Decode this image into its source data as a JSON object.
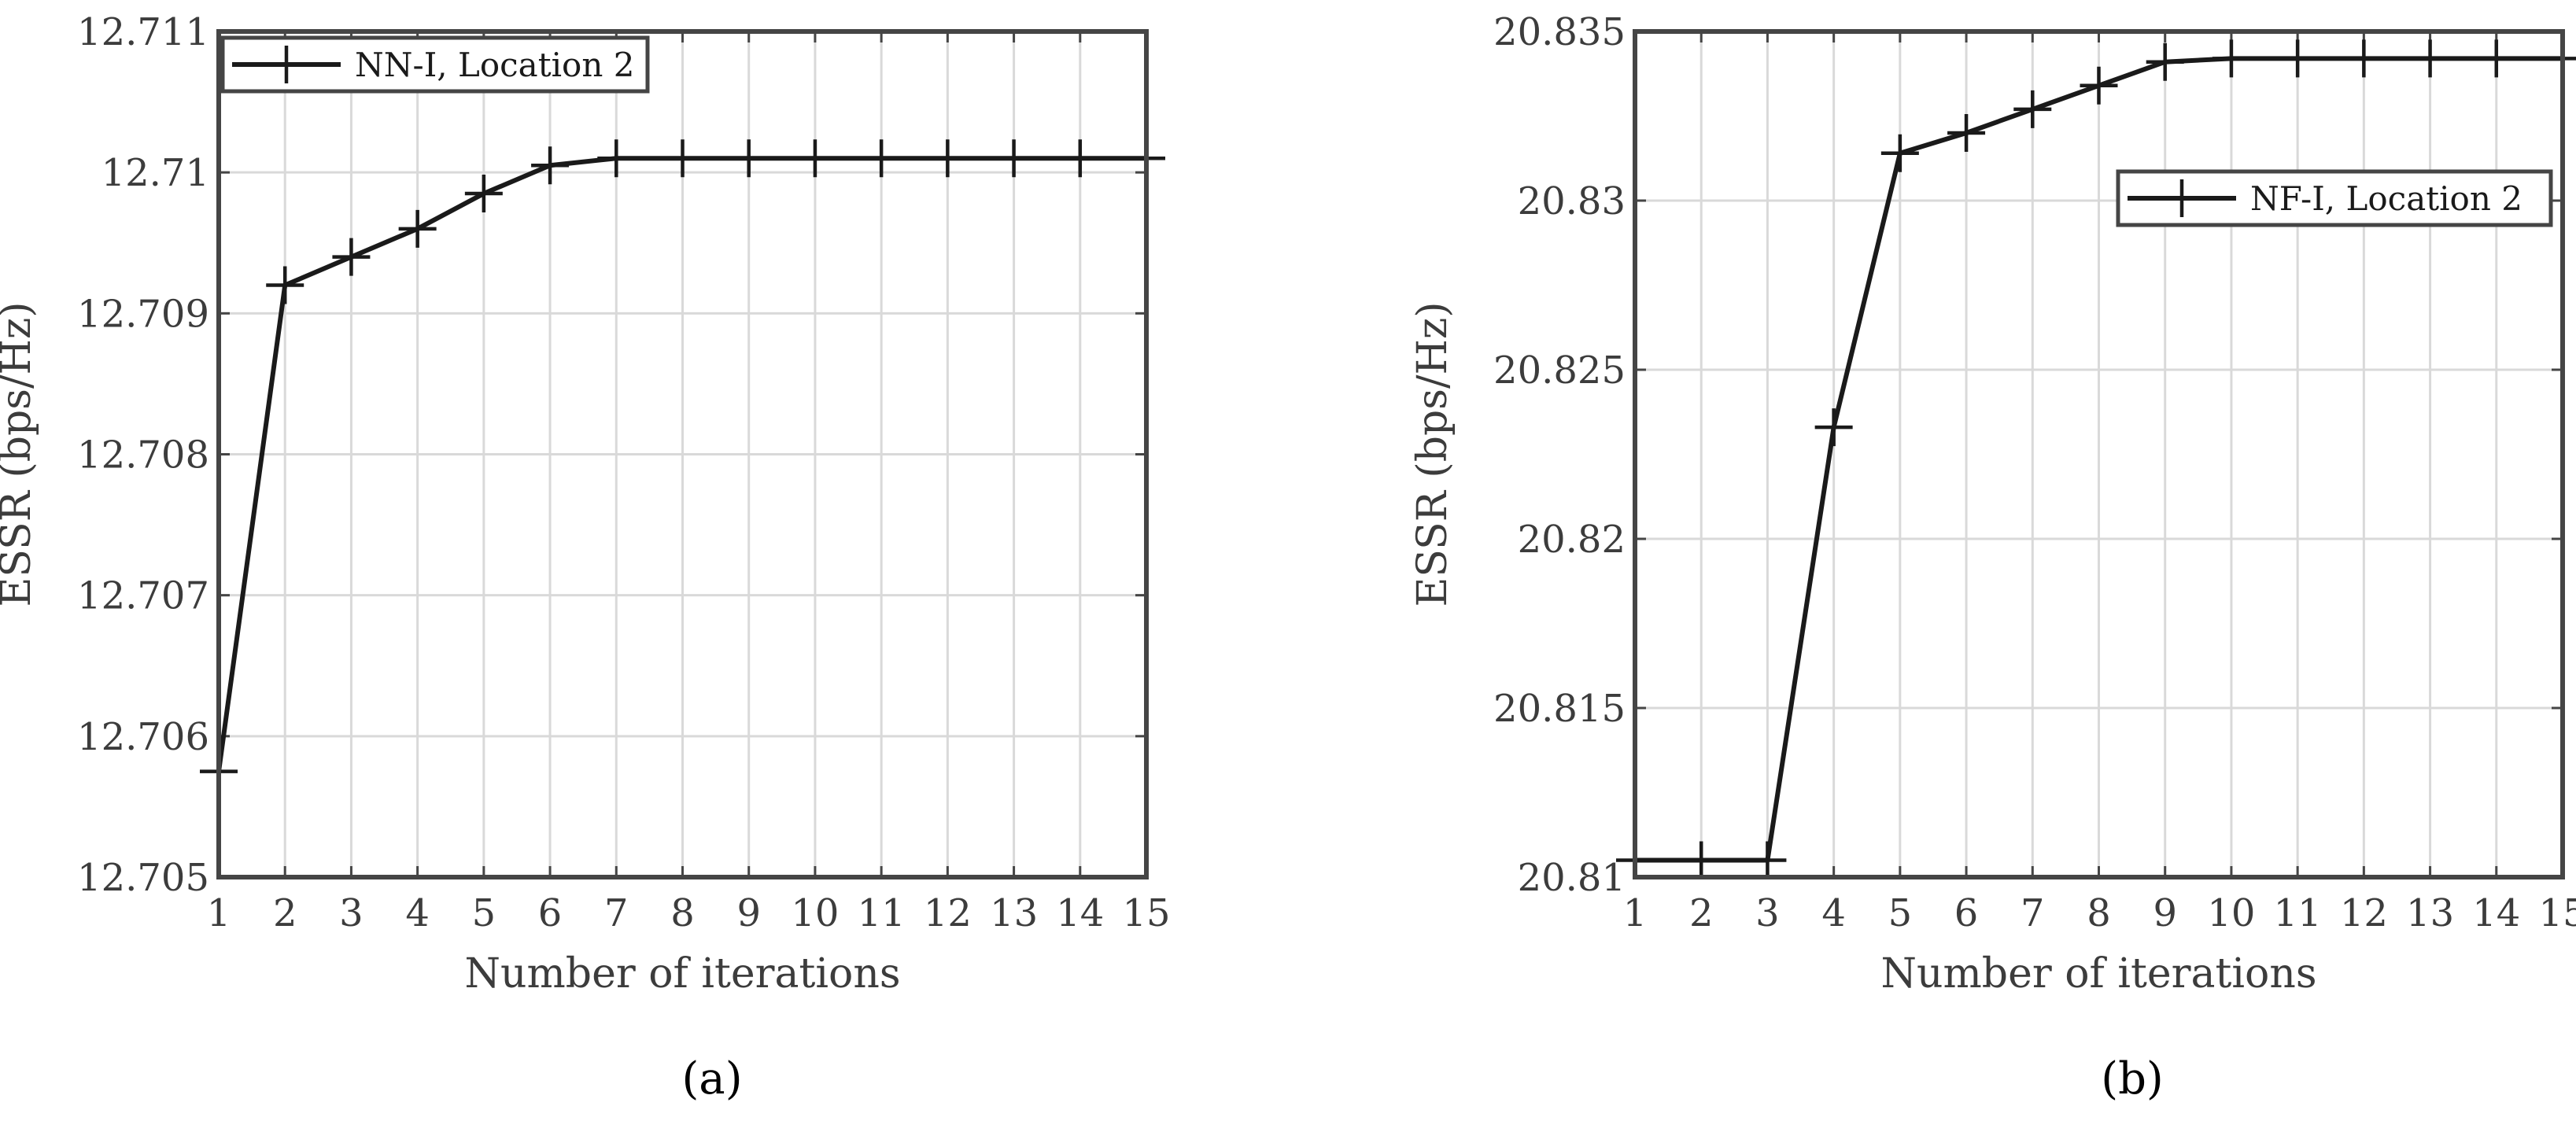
{
  "figure": {
    "caption_a": "(a)",
    "caption_b": "(b)"
  },
  "chart_data": [
    {
      "type": "line",
      "panel": "a",
      "xlabel": "Number of iterations",
      "ylabel": "ESSR (bps/Hz)",
      "xlim": [
        1,
        15
      ],
      "ylim": [
        12.705,
        12.711
      ],
      "xticks": [
        "1",
        "2",
        "3",
        "4",
        "5",
        "6",
        "7",
        "8",
        "9",
        "10",
        "11",
        "12",
        "13",
        "14",
        "15"
      ],
      "yticks": [
        "12.705",
        "12.706",
        "12.707",
        "12.708",
        "12.709",
        "12.71",
        "12.711"
      ],
      "grid": true,
      "legend_position": "top-left",
      "series": [
        {
          "name": "NN-I, Location 2",
          "marker": "plus",
          "color": "#1a1a1a",
          "x": [
            1,
            2,
            3,
            4,
            5,
            6,
            7,
            8,
            9,
            10,
            11,
            12,
            13,
            14,
            15
          ],
          "y": [
            12.70575,
            12.7092,
            12.7094,
            12.7096,
            12.70985,
            12.71005,
            12.7101,
            12.7101,
            12.7101,
            12.7101,
            12.7101,
            12.7101,
            12.7101,
            12.7101,
            12.7101
          ]
        }
      ]
    },
    {
      "type": "line",
      "panel": "b",
      "xlabel": "Number of iterations",
      "ylabel": "ESSR (bps/Hz)",
      "xlim": [
        1,
        15
      ],
      "ylim": [
        20.81,
        20.835
      ],
      "xticks": [
        "1",
        "2",
        "3",
        "4",
        "5",
        "6",
        "7",
        "8",
        "9",
        "10",
        "11",
        "12",
        "13",
        "14",
        "15"
      ],
      "yticks": [
        "20.81",
        "20.815",
        "20.82",
        "20.825",
        "20.83",
        "20.835"
      ],
      "grid": true,
      "legend_position": "top-right",
      "series": [
        {
          "name": "NF-I, Location 2",
          "marker": "plus",
          "color": "#1a1a1a",
          "x": [
            1,
            2,
            3,
            4,
            5,
            6,
            7,
            8,
            9,
            10,
            11,
            12,
            13,
            14,
            15
          ],
          "y": [
            20.8105,
            20.8105,
            20.8105,
            20.8233,
            20.8314,
            20.832,
            20.8327,
            20.8334,
            20.8341,
            20.8342,
            20.8342,
            20.8342,
            20.8342,
            20.8342,
            20.8342
          ]
        }
      ]
    }
  ],
  "colors": {
    "frame": "#454545",
    "grid": "#d9d9d9",
    "line": "#1a1a1a"
  }
}
